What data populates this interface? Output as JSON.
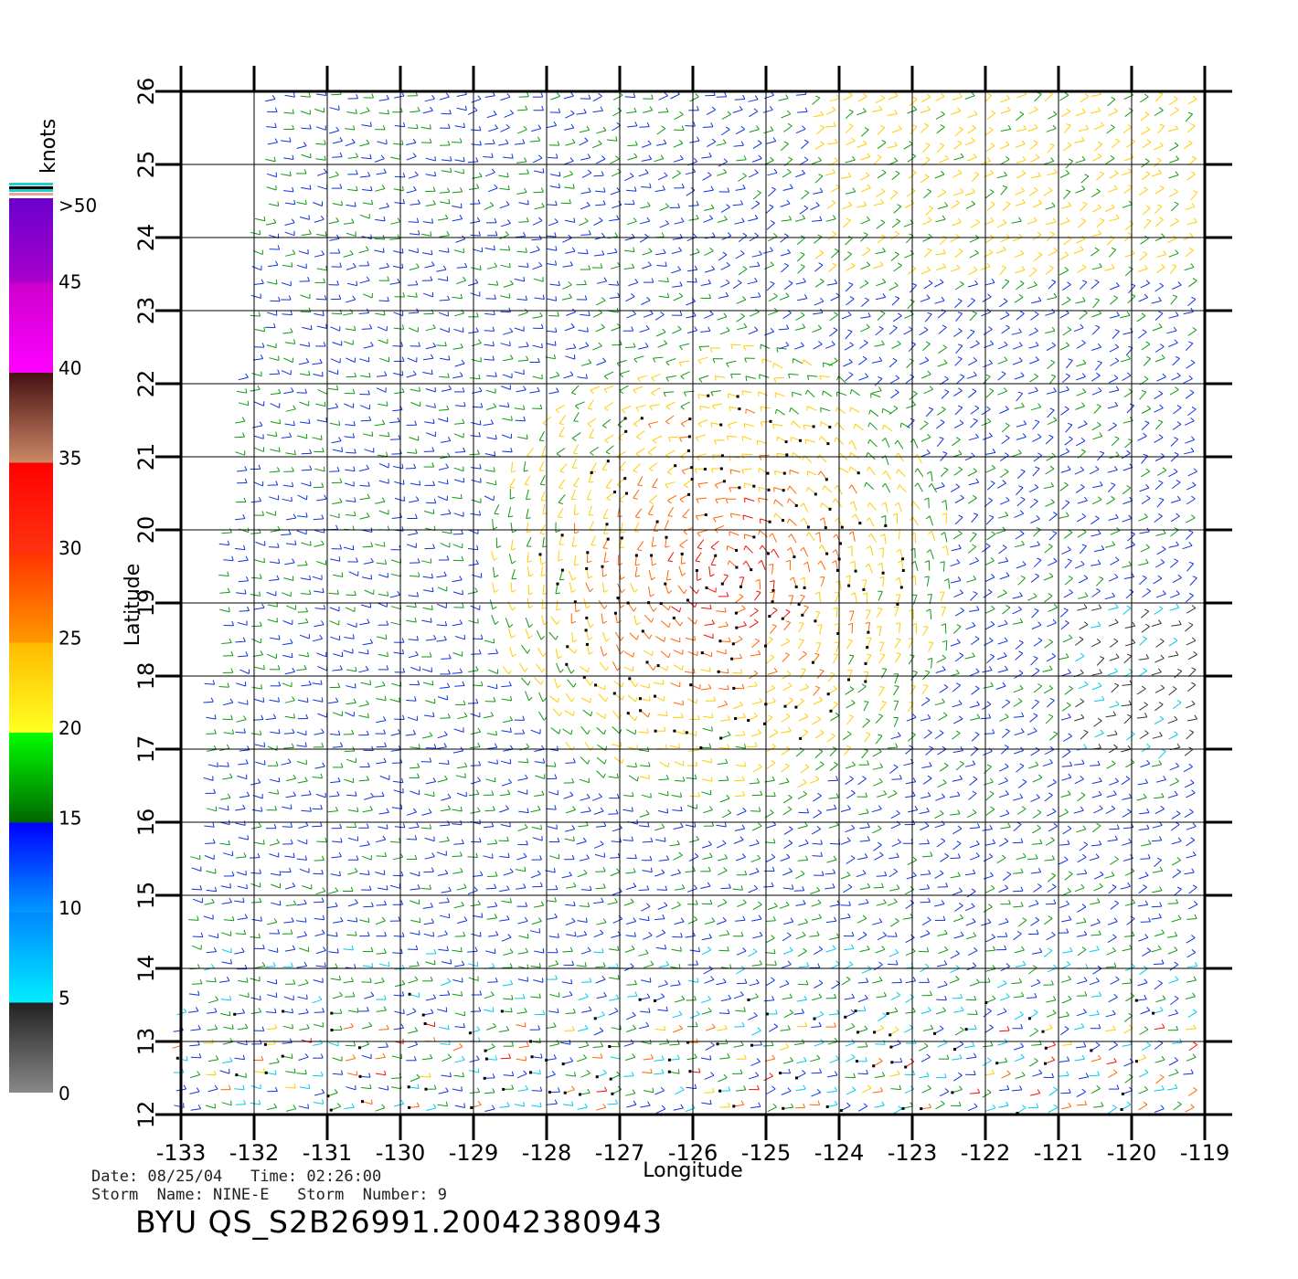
{
  "colorbar": {
    "title": "knots",
    "top_label": ">50",
    "labels": [
      "45",
      "40",
      "35",
      "30",
      "25",
      "20",
      "15",
      "10",
      "5",
      "0"
    ],
    "bands": [
      {
        "from": 0,
        "to": 5,
        "colors": [
          "#888888",
          "#222222"
        ]
      },
      {
        "from": 5,
        "to": 10,
        "colors": [
          "#00eeff",
          "#0088ff"
        ]
      },
      {
        "from": 10,
        "to": 15,
        "colors": [
          "#0099ff",
          "#0000ff"
        ]
      },
      {
        "from": 15,
        "to": 20,
        "colors": [
          "#006600",
          "#00ff00"
        ]
      },
      {
        "from": 20,
        "to": 25,
        "colors": [
          "#ffff22",
          "#ffbb00"
        ]
      },
      {
        "from": 25,
        "to": 30,
        "colors": [
          "#ff9900",
          "#ff3300"
        ]
      },
      {
        "from": 30,
        "to": 35,
        "colors": [
          "#ff3311",
          "#ff0000"
        ]
      },
      {
        "from": 35,
        "to": 40,
        "colors": [
          "#cc8866",
          "#441111"
        ]
      },
      {
        "from": 40,
        "to": 45,
        "colors": [
          "#ff00ff",
          "#cc00cc"
        ]
      },
      {
        "from": 45,
        "to": 50,
        "colors": [
          "#aa00cc",
          "#6600cc"
        ]
      }
    ]
  },
  "map": {
    "lon_ticks": [
      "-133",
      "-132",
      "-131",
      "-130",
      "-129",
      "-128",
      "-127",
      "-126",
      "-125",
      "-124",
      "-123",
      "-122",
      "-121",
      "-120",
      "-119"
    ],
    "lat_ticks": [
      "12",
      "13",
      "14",
      "15",
      "16",
      "17",
      "18",
      "19",
      "20",
      "21",
      "22",
      "23",
      "24",
      "25",
      "26"
    ],
    "lon_range": [
      -133,
      -119
    ],
    "lat_range": [
      12,
      26
    ],
    "xlabel": "Longitude",
    "ylabel": "Latitude",
    "grid": true,
    "storm_center": {
      "lon": -125.6,
      "lat": 19.4
    },
    "colors": {
      "calm": "#333333",
      "light": "#00ccee",
      "moderate": "#1133dd",
      "fresh": "#119911",
      "strong": "#ffcc00",
      "gale": "#ff6600",
      "storm": "#ee1100",
      "rain_flag": "#000000"
    }
  },
  "footer": {
    "line1": "Date: 08/25/04   Time: 02:26:00",
    "line2": "Storm  Name: NINE-E   Storm  Number: 9",
    "product": "BYU  QS_S2B26991.20042380943"
  }
}
